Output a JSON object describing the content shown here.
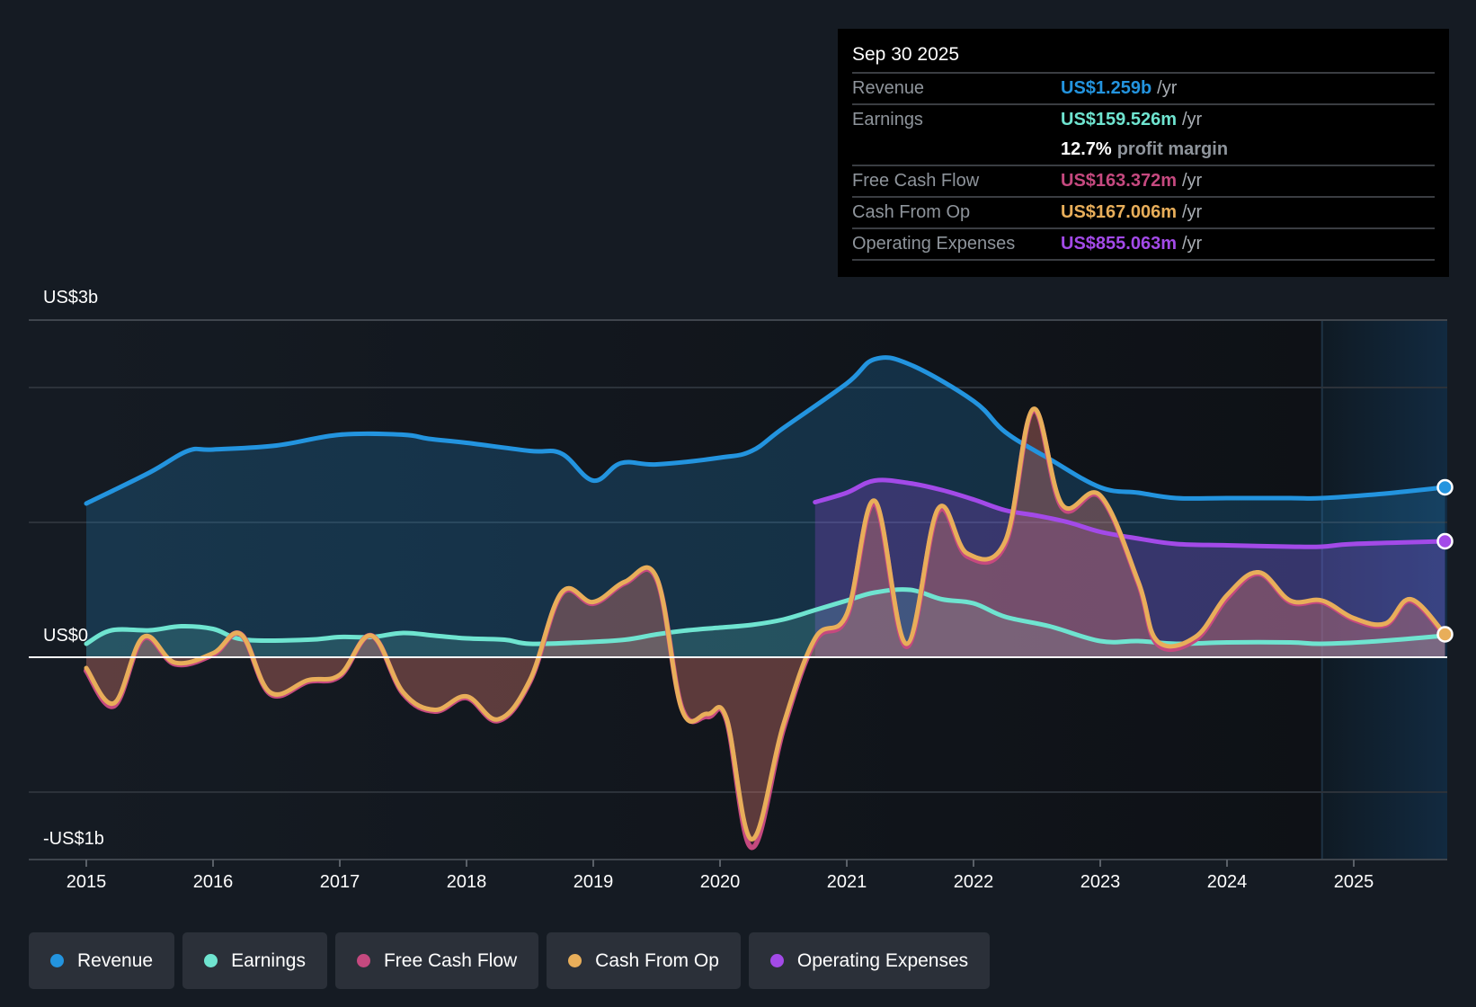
{
  "tooltip": {
    "date": "Sep 30 2025",
    "rows": [
      {
        "label": "Revenue",
        "value": "US$1.259b",
        "unit": "/yr",
        "color": "#2394df"
      },
      {
        "label": "Earnings",
        "value": "US$159.526m",
        "unit": "/yr",
        "color": "#6fe4d0"
      },
      {
        "label": "",
        "margin_value": "12.7%",
        "margin_text": "profit margin"
      },
      {
        "label": "Free Cash Flow",
        "value": "US$163.372m",
        "unit": "/yr",
        "color": "#c5497f"
      },
      {
        "label": "Cash From Op",
        "value": "US$167.006m",
        "unit": "/yr",
        "color": "#e8ae5a"
      },
      {
        "label": "Operating Expenses",
        "value": "US$855.063m",
        "unit": "/yr",
        "color": "#a34ae8"
      }
    ]
  },
  "legend": [
    {
      "label": "Revenue",
      "color": "#2394df"
    },
    {
      "label": "Earnings",
      "color": "#6fe4d0"
    },
    {
      "label": "Free Cash Flow",
      "color": "#c5497f"
    },
    {
      "label": "Cash From Op",
      "color": "#e8ae5a"
    },
    {
      "label": "Operating Expenses",
      "color": "#a34ae8"
    }
  ],
  "chart_data": {
    "type": "line",
    "title": "",
    "xlabel": "",
    "ylabel": "",
    "unit": "US$ billions",
    "y_tick_labels": [
      {
        "value": 2.5,
        "label": "US$3b"
      },
      {
        "value": 0,
        "label": "US$0"
      },
      {
        "value": -1.5,
        "label": "-US$1b"
      }
    ],
    "ylim": [
      -1.5,
      2.5
    ],
    "y_gridlines": [
      2.5,
      2,
      1,
      0,
      -1,
      -1.5
    ],
    "x_ticks": [
      2015,
      2016,
      2017,
      2018,
      2019,
      2020,
      2021,
      2022,
      2023,
      2024,
      2025
    ],
    "xlim": [
      2014.55,
      2025.73
    ],
    "forecast_region_start": 2024.75,
    "grid": true,
    "legend_position": "bottom",
    "series": [
      {
        "name": "Revenue",
        "color": "#2394df",
        "points": [
          [
            2015.0,
            1.14
          ],
          [
            2015.5,
            1.37
          ],
          [
            2015.8,
            1.53
          ],
          [
            2016.0,
            1.54
          ],
          [
            2016.5,
            1.57
          ],
          [
            2017.0,
            1.65
          ],
          [
            2017.5,
            1.65
          ],
          [
            2017.7,
            1.62
          ],
          [
            2018.0,
            1.59
          ],
          [
            2018.5,
            1.53
          ],
          [
            2018.75,
            1.51
          ],
          [
            2019.0,
            1.31
          ],
          [
            2019.22,
            1.44
          ],
          [
            2019.5,
            1.43
          ],
          [
            2020.0,
            1.48
          ],
          [
            2020.25,
            1.53
          ],
          [
            2020.5,
            1.7
          ],
          [
            2021.0,
            2.03
          ],
          [
            2021.22,
            2.21
          ],
          [
            2021.5,
            2.17
          ],
          [
            2022.0,
            1.9
          ],
          [
            2022.25,
            1.67
          ],
          [
            2022.6,
            1.47
          ],
          [
            2023.0,
            1.26
          ],
          [
            2023.3,
            1.22
          ],
          [
            2023.6,
            1.18
          ],
          [
            2024.0,
            1.18
          ],
          [
            2024.5,
            1.18
          ],
          [
            2024.75,
            1.18
          ],
          [
            2025.2,
            1.21
          ],
          [
            2025.72,
            1.26
          ]
        ]
      },
      {
        "name": "Earnings",
        "color": "#6fe4d0",
        "points": [
          [
            2015.0,
            0.1
          ],
          [
            2015.2,
            0.2
          ],
          [
            2015.5,
            0.2
          ],
          [
            2015.75,
            0.23
          ],
          [
            2016.0,
            0.21
          ],
          [
            2016.25,
            0.13
          ],
          [
            2016.75,
            0.13
          ],
          [
            2017.0,
            0.15
          ],
          [
            2017.25,
            0.15
          ],
          [
            2017.5,
            0.18
          ],
          [
            2017.75,
            0.16
          ],
          [
            2018.0,
            0.14
          ],
          [
            2018.3,
            0.13
          ],
          [
            2018.5,
            0.1
          ],
          [
            2018.9,
            0.11
          ],
          [
            2019.25,
            0.13
          ],
          [
            2019.5,
            0.17
          ],
          [
            2019.75,
            0.2
          ],
          [
            2020.0,
            0.22
          ],
          [
            2020.25,
            0.24
          ],
          [
            2020.5,
            0.28
          ],
          [
            2020.75,
            0.35
          ],
          [
            2021.0,
            0.42
          ],
          [
            2021.22,
            0.48
          ],
          [
            2021.5,
            0.5
          ],
          [
            2021.75,
            0.43
          ],
          [
            2022.0,
            0.4
          ],
          [
            2022.25,
            0.3
          ],
          [
            2022.6,
            0.23
          ],
          [
            2023.0,
            0.12
          ],
          [
            2023.3,
            0.12
          ],
          [
            2023.6,
            0.1
          ],
          [
            2024.0,
            0.11
          ],
          [
            2024.5,
            0.11
          ],
          [
            2024.75,
            0.1
          ],
          [
            2025.2,
            0.12
          ],
          [
            2025.72,
            0.16
          ]
        ]
      },
      {
        "name": "Free Cash Flow",
        "color": "#c5497f",
        "points": [
          [
            2015.0,
            -0.1
          ],
          [
            2015.22,
            -0.36
          ],
          [
            2015.45,
            0.14
          ],
          [
            2015.7,
            -0.05
          ],
          [
            2016.0,
            0.02
          ],
          [
            2016.22,
            0.17
          ],
          [
            2016.45,
            -0.27
          ],
          [
            2016.75,
            -0.18
          ],
          [
            2017.0,
            -0.14
          ],
          [
            2017.25,
            0.16
          ],
          [
            2017.5,
            -0.27
          ],
          [
            2017.75,
            -0.4
          ],
          [
            2018.0,
            -0.3
          ],
          [
            2018.25,
            -0.47
          ],
          [
            2018.5,
            -0.18
          ],
          [
            2018.75,
            0.47
          ],
          [
            2019.0,
            0.4
          ],
          [
            2019.25,
            0.55
          ],
          [
            2019.5,
            0.58
          ],
          [
            2019.7,
            -0.38
          ],
          [
            2019.9,
            -0.44
          ],
          [
            2020.05,
            -0.46
          ],
          [
            2020.25,
            -1.41
          ],
          [
            2020.5,
            -0.53
          ],
          [
            2020.75,
            0.12
          ],
          [
            2021.0,
            0.3
          ],
          [
            2021.22,
            1.14
          ],
          [
            2021.47,
            0.08
          ],
          [
            2021.72,
            1.08
          ],
          [
            2021.95,
            0.75
          ],
          [
            2022.25,
            0.84
          ],
          [
            2022.47,
            1.83
          ],
          [
            2022.7,
            1.11
          ],
          [
            2023.0,
            1.19
          ],
          [
            2023.3,
            0.55
          ],
          [
            2023.45,
            0.1
          ],
          [
            2023.75,
            0.13
          ],
          [
            2024.0,
            0.44
          ],
          [
            2024.25,
            0.62
          ],
          [
            2024.5,
            0.41
          ],
          [
            2024.75,
            0.41
          ],
          [
            2025.0,
            0.28
          ],
          [
            2025.25,
            0.24
          ],
          [
            2025.45,
            0.42
          ],
          [
            2025.72,
            0.16
          ]
        ]
      },
      {
        "name": "Cash From Op",
        "color": "#e8ae5a",
        "points": [
          [
            2015.0,
            -0.08
          ],
          [
            2015.22,
            -0.34
          ],
          [
            2015.45,
            0.15
          ],
          [
            2015.7,
            -0.04
          ],
          [
            2016.0,
            0.03
          ],
          [
            2016.22,
            0.17
          ],
          [
            2016.45,
            -0.26
          ],
          [
            2016.75,
            -0.17
          ],
          [
            2017.0,
            -0.13
          ],
          [
            2017.25,
            0.16
          ],
          [
            2017.5,
            -0.26
          ],
          [
            2017.75,
            -0.39
          ],
          [
            2018.0,
            -0.29
          ],
          [
            2018.25,
            -0.46
          ],
          [
            2018.5,
            -0.17
          ],
          [
            2018.75,
            0.48
          ],
          [
            2019.0,
            0.41
          ],
          [
            2019.25,
            0.56
          ],
          [
            2019.5,
            0.59
          ],
          [
            2019.7,
            -0.39
          ],
          [
            2019.9,
            -0.42
          ],
          [
            2020.05,
            -0.45
          ],
          [
            2020.25,
            -1.35
          ],
          [
            2020.5,
            -0.5
          ],
          [
            2020.75,
            0.14
          ],
          [
            2021.0,
            0.32
          ],
          [
            2021.22,
            1.16
          ],
          [
            2021.47,
            0.1
          ],
          [
            2021.72,
            1.1
          ],
          [
            2021.95,
            0.77
          ],
          [
            2022.25,
            0.86
          ],
          [
            2022.47,
            1.84
          ],
          [
            2022.7,
            1.13
          ],
          [
            2023.0,
            1.2
          ],
          [
            2023.3,
            0.56
          ],
          [
            2023.45,
            0.12
          ],
          [
            2023.75,
            0.15
          ],
          [
            2024.0,
            0.46
          ],
          [
            2024.25,
            0.63
          ],
          [
            2024.5,
            0.42
          ],
          [
            2024.75,
            0.42
          ],
          [
            2025.0,
            0.29
          ],
          [
            2025.25,
            0.25
          ],
          [
            2025.45,
            0.43
          ],
          [
            2025.72,
            0.17
          ]
        ]
      },
      {
        "name": "Operating Expenses",
        "color": "#a34ae8",
        "points": [
          [
            2020.75,
            1.15
          ],
          [
            2021.0,
            1.22
          ],
          [
            2021.22,
            1.31
          ],
          [
            2021.5,
            1.29
          ],
          [
            2021.75,
            1.24
          ],
          [
            2022.0,
            1.17
          ],
          [
            2022.25,
            1.09
          ],
          [
            2022.5,
            1.05
          ],
          [
            2022.75,
            1.0
          ],
          [
            2023.0,
            0.93
          ],
          [
            2023.3,
            0.88
          ],
          [
            2023.6,
            0.84
          ],
          [
            2024.0,
            0.83
          ],
          [
            2024.5,
            0.82
          ],
          [
            2024.75,
            0.82
          ],
          [
            2025.0,
            0.84
          ],
          [
            2025.72,
            0.86
          ]
        ]
      }
    ]
  }
}
